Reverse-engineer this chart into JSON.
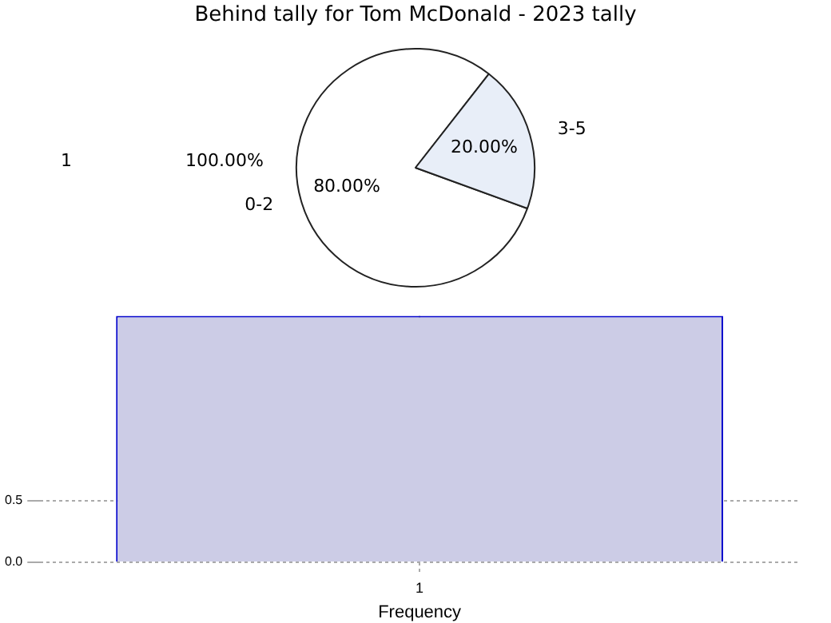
{
  "chart_data": [
    {
      "type": "pie",
      "title": "Behind tally for Tom McDonald - 2023 tally",
      "categories": [
        "0-2",
        "3-5"
      ],
      "values": [
        80,
        20
      ],
      "colors": [
        "#ffffff",
        "#e8eef8"
      ],
      "value_labels": [
        "80.00%",
        "20.00%"
      ],
      "annotations": [
        "1",
        "100.00%"
      ],
      "legend": false
    },
    {
      "type": "bar",
      "categories": [
        "1"
      ],
      "values": [
        2
      ],
      "color": "#ccccE6",
      "ylim": [
        0,
        2
      ],
      "yticks": [
        {
          "value": 0,
          "label": "0.0"
        },
        {
          "value": 0.5,
          "label": "0.5"
        }
      ],
      "xlabel": "Frequency",
      "grid": true,
      "legend": false
    }
  ]
}
